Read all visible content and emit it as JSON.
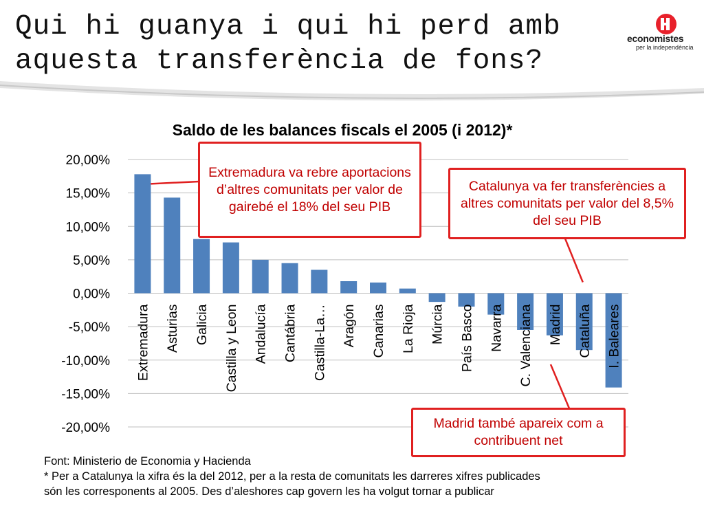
{
  "slide": {
    "title_line1": "Qui hi guanya i qui hi perd amb",
    "title_line2": "aquesta transferència de fons?"
  },
  "logo": {
    "name": "economistes",
    "subtitle": "per la independència",
    "icon": "economistes-logo-icon",
    "color": "#e8212b"
  },
  "chart_data": {
    "type": "bar",
    "title": "Saldo de les balances fiscals el 2005 (i 2012)*",
    "categories": [
      "Extremadura",
      "Asturias",
      "Galicia",
      "Castilla y Leon",
      "Andalucía",
      "Cantábria",
      "Castilla-La…",
      "Aragón",
      "Canarias",
      "La Rioja",
      "Múrcia",
      "País Basco",
      "Navarra",
      "C. Valenciana",
      "Madrid",
      "Cataluña",
      "I. Baleares"
    ],
    "values": [
      17.8,
      14.3,
      8.1,
      7.6,
      5.0,
      4.5,
      3.5,
      1.8,
      1.6,
      0.7,
      -1.3,
      -2.0,
      -3.2,
      -5.5,
      -6.3,
      -8.5,
      -14.1
    ],
    "ylim": [
      -20,
      20
    ],
    "yticks": [
      "20,00%",
      "15,00%",
      "10,00%",
      "5,00%",
      "0,00%",
      "-5,00%",
      "-10,00%",
      "-15,00%",
      "-20,00%"
    ],
    "ytick_values": [
      20,
      15,
      10,
      5,
      0,
      -5,
      -10,
      -15,
      -20
    ],
    "bar_color": "#4f81bd",
    "grid": true,
    "xlabel": "",
    "ylabel": ""
  },
  "annotations": [
    {
      "text": "Extremadura va rebre aportacions d’altres comunitats per valor de gairebé el 18% del seu PIB",
      "target": "Extremadura"
    },
    {
      "text": "Catalunya va fer transferències a altres comunitats per valor del 8,5% del seu PIB",
      "target": "Cataluña"
    },
    {
      "text": "Madrid també apareix com a contribuent net",
      "target": "Madrid"
    }
  ],
  "annotation_color": "#e02020",
  "source": {
    "line1": "Font: Ministerio de Economia y Hacienda",
    "line2": "* Per a Catalunya la xifra és la del 2012, per a la resta de comunitats les darreres xifres publicades",
    "line3": "són les corresponents al 2005. Des d’aleshores cap govern les ha volgut tornar a publicar"
  }
}
